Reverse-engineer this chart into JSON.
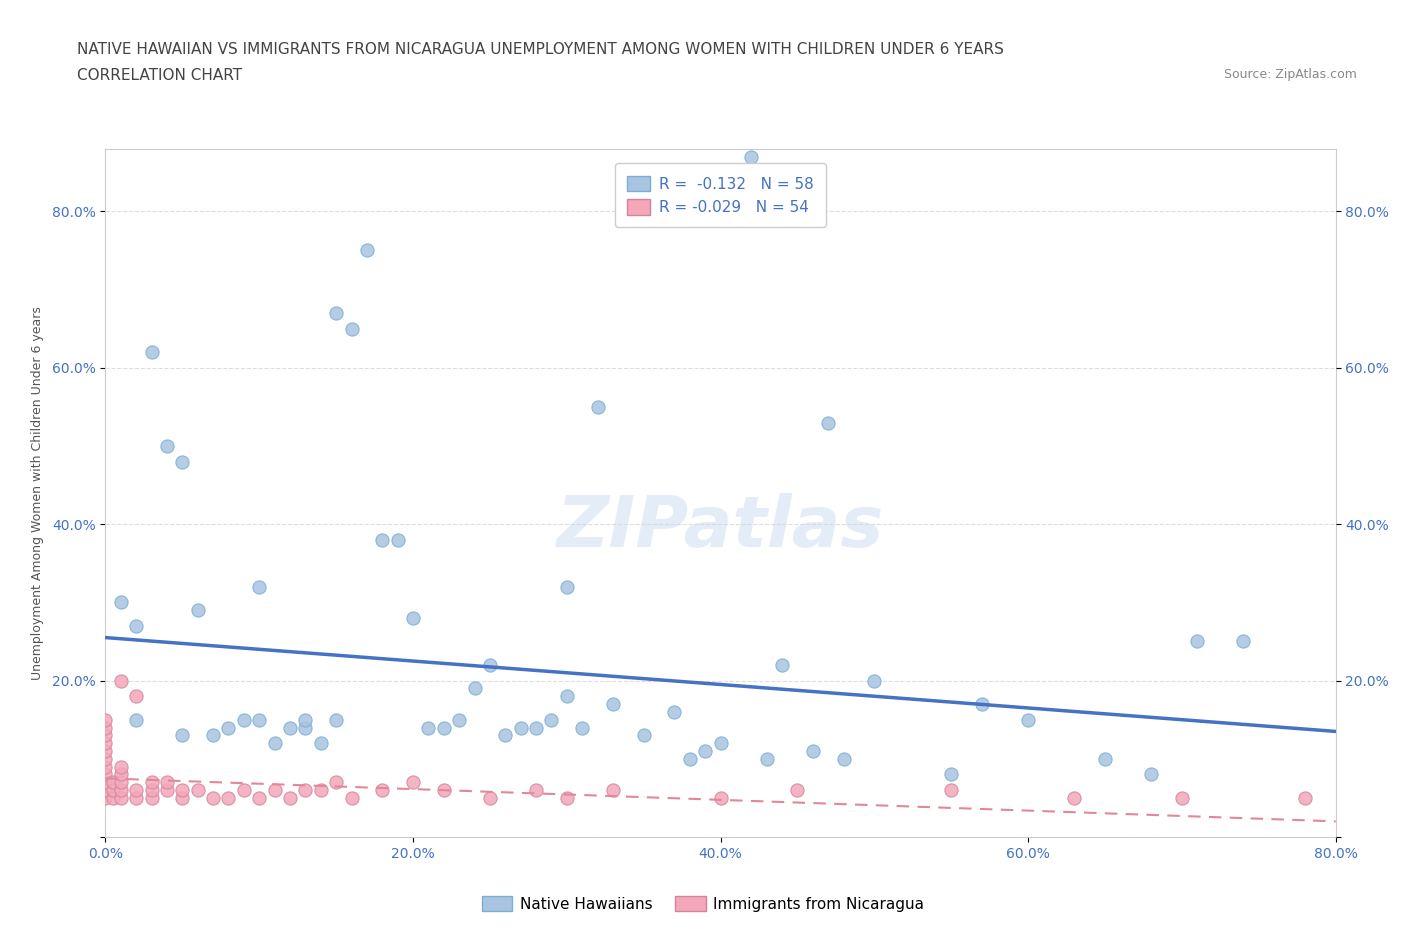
{
  "title_line1": "NATIVE HAWAIIAN VS IMMIGRANTS FROM NICARAGUA UNEMPLOYMENT AMONG WOMEN WITH CHILDREN UNDER 6 YEARS",
  "title_line2": "CORRELATION CHART",
  "source": "Source: ZipAtlas.com",
  "ylabel": "Unemployment Among Women with Children Under 6 years",
  "watermark": "ZIPatlas",
  "blue_R": -0.132,
  "blue_N": 58,
  "pink_R": -0.029,
  "pink_N": 54,
  "blue_color": "#a8c4e0",
  "blue_edge_color": "#7aafd4",
  "blue_line_color": "#4472c4",
  "pink_color": "#f4a7b9",
  "pink_edge_color": "#d4849a",
  "pink_line_color": "#e08898",
  "xlim": [
    0.0,
    0.8
  ],
  "ylim": [
    0.0,
    0.88
  ],
  "xtick_vals": [
    0.0,
    0.2,
    0.4,
    0.6,
    0.8
  ],
  "xtick_labels": [
    "0.0%",
    "20.0%",
    "40.0%",
    "60.0%",
    "80.0%"
  ],
  "ytick_vals": [
    0.0,
    0.2,
    0.4,
    0.6,
    0.8
  ],
  "ytick_labels_left": [
    "",
    "20.0%",
    "40.0%",
    "60.0%",
    "80.0%"
  ],
  "ytick_labels_right": [
    "",
    "20.0%",
    "40.0%",
    "60.0%",
    "80.0%"
  ],
  "blue_scatter_x": [
    0.01,
    0.02,
    0.02,
    0.03,
    0.04,
    0.05,
    0.05,
    0.06,
    0.07,
    0.08,
    0.09,
    0.1,
    0.1,
    0.11,
    0.12,
    0.13,
    0.13,
    0.14,
    0.15,
    0.15,
    0.16,
    0.17,
    0.18,
    0.19,
    0.2,
    0.21,
    0.22,
    0.23,
    0.24,
    0.25,
    0.26,
    0.27,
    0.28,
    0.29,
    0.3,
    0.3,
    0.31,
    0.32,
    0.33,
    0.35,
    0.37,
    0.38,
    0.39,
    0.4,
    0.42,
    0.43,
    0.44,
    0.46,
    0.47,
    0.48,
    0.5,
    0.55,
    0.57,
    0.6,
    0.65,
    0.68,
    0.71,
    0.74
  ],
  "blue_scatter_y": [
    0.3,
    0.15,
    0.27,
    0.62,
    0.5,
    0.48,
    0.13,
    0.29,
    0.13,
    0.14,
    0.15,
    0.15,
    0.32,
    0.12,
    0.14,
    0.14,
    0.15,
    0.12,
    0.15,
    0.67,
    0.65,
    0.75,
    0.38,
    0.38,
    0.28,
    0.14,
    0.14,
    0.15,
    0.19,
    0.22,
    0.13,
    0.14,
    0.14,
    0.15,
    0.32,
    0.18,
    0.14,
    0.55,
    0.17,
    0.13,
    0.16,
    0.1,
    0.11,
    0.12,
    0.87,
    0.1,
    0.22,
    0.11,
    0.53,
    0.1,
    0.2,
    0.08,
    0.17,
    0.15,
    0.1,
    0.08,
    0.25,
    0.25
  ],
  "pink_scatter_x": [
    0.0,
    0.0,
    0.0,
    0.0,
    0.0,
    0.0,
    0.0,
    0.0,
    0.0,
    0.0,
    0.0,
    0.005,
    0.005,
    0.005,
    0.01,
    0.01,
    0.01,
    0.01,
    0.01,
    0.01,
    0.02,
    0.02,
    0.02,
    0.03,
    0.03,
    0.03,
    0.04,
    0.04,
    0.05,
    0.05,
    0.06,
    0.07,
    0.08,
    0.09,
    0.1,
    0.11,
    0.12,
    0.13,
    0.14,
    0.15,
    0.16,
    0.18,
    0.2,
    0.22,
    0.25,
    0.28,
    0.3,
    0.33,
    0.4,
    0.45,
    0.55,
    0.63,
    0.7,
    0.78
  ],
  "pink_scatter_y": [
    0.05,
    0.06,
    0.07,
    0.08,
    0.09,
    0.1,
    0.11,
    0.12,
    0.13,
    0.14,
    0.15,
    0.05,
    0.06,
    0.07,
    0.05,
    0.06,
    0.07,
    0.08,
    0.09,
    0.2,
    0.05,
    0.06,
    0.18,
    0.05,
    0.06,
    0.07,
    0.06,
    0.07,
    0.05,
    0.06,
    0.06,
    0.05,
    0.05,
    0.06,
    0.05,
    0.06,
    0.05,
    0.06,
    0.06,
    0.07,
    0.05,
    0.06,
    0.07,
    0.06,
    0.05,
    0.06,
    0.05,
    0.06,
    0.05,
    0.06,
    0.06,
    0.05,
    0.05,
    0.05
  ],
  "blue_line_x0": 0.0,
  "blue_line_y0": 0.255,
  "blue_line_x1": 0.8,
  "blue_line_y1": 0.135,
  "pink_line_x0": 0.0,
  "pink_line_y0": 0.075,
  "pink_line_x1": 0.8,
  "pink_line_y1": 0.02,
  "title_fontsize": 11,
  "axis_label_fontsize": 9,
  "tick_fontsize": 10,
  "legend_fontsize": 11,
  "background_color": "#ffffff",
  "grid_color": "#dddddd",
  "axis_color": "#4472c4",
  "text_color": "#555555"
}
